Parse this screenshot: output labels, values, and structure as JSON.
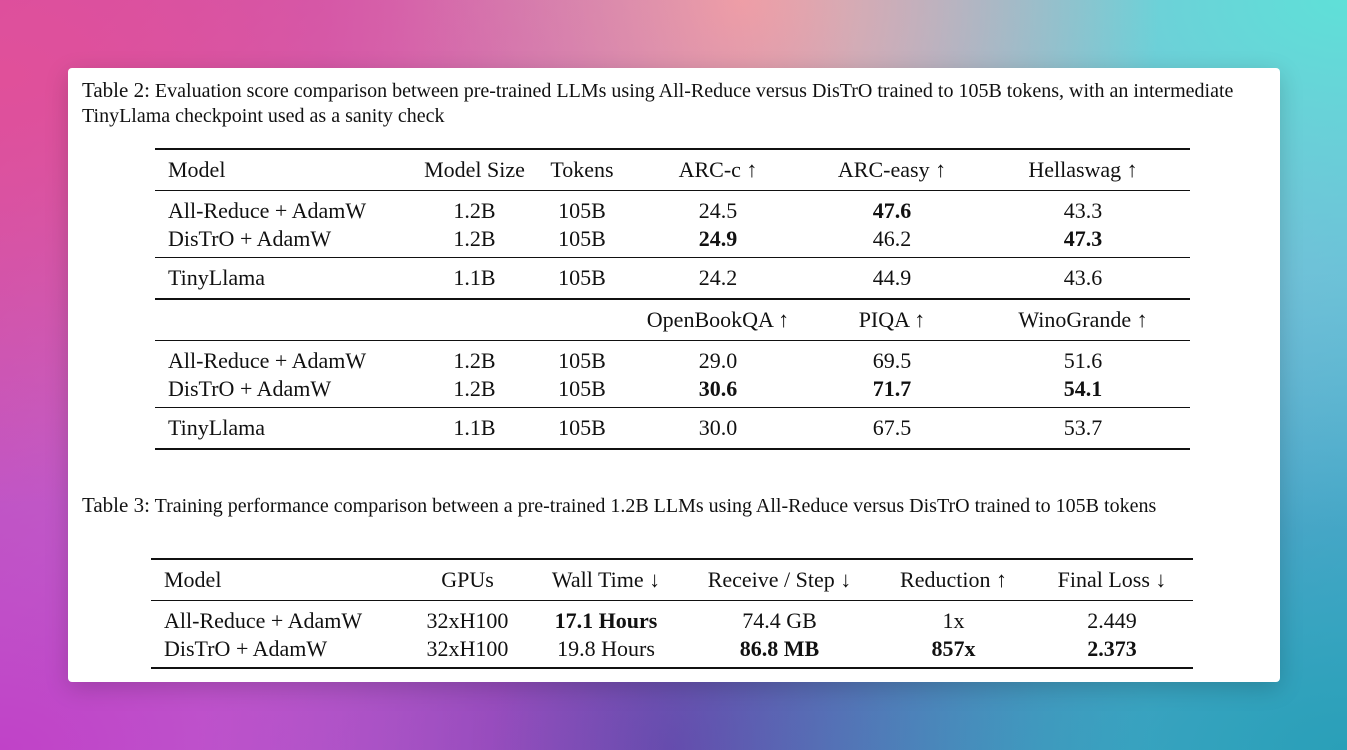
{
  "table2": {
    "label": "Table 2:",
    "caption": "Evaluation score comparison between pre-trained LLMs using All-Reduce versus DisTrO trained to 105B tokens, with an intermediate TinyLlama checkpoint used as a sanity check",
    "header": [
      "Model",
      "Model Size",
      "Tokens",
      "ARC-c ↑",
      "ARC-easy ↑",
      "Hellaswag ↑"
    ],
    "rows_a": [
      [
        "All-Reduce + AdamW",
        "1.2B",
        "105B",
        "24.5",
        "47.6",
        "43.3"
      ],
      [
        "DisTrO + AdamW",
        "1.2B",
        "105B",
        "24.9",
        "46.2",
        "47.3"
      ],
      [
        "TinyLlama",
        "1.1B",
        "105B",
        "24.2",
        "44.9",
        "43.6"
      ]
    ],
    "header2": [
      "OpenBookQA ↑",
      "PIQA ↑",
      "WinoGrande ↑"
    ],
    "rows_b": [
      [
        "All-Reduce + AdamW",
        "1.2B",
        "105B",
        "29.0",
        "69.5",
        "51.6"
      ],
      [
        "DisTrO + AdamW",
        "1.2B",
        "105B",
        "30.6",
        "71.7",
        "54.1"
      ],
      [
        "TinyLlama",
        "1.1B",
        "105B",
        "30.0",
        "67.5",
        "53.7"
      ]
    ]
  },
  "table3": {
    "label": "Table 3:",
    "caption": "Training performance comparison between a pre-trained 1.2B LLMs using All-Reduce versus DisTrO trained to 105B tokens",
    "header": [
      "Model",
      "GPUs",
      "Wall Time ↓",
      "Receive / Step ↓",
      "Reduction ↑",
      "Final Loss ↓"
    ],
    "rows": [
      [
        "All-Reduce + AdamW",
        "32xH100",
        "17.1 Hours",
        "74.4 GB",
        "1x",
        "2.449"
      ],
      [
        "DisTrO + AdamW",
        "32xH100",
        "19.8 Hours",
        "86.8 MB",
        "857x",
        "2.373"
      ]
    ]
  }
}
